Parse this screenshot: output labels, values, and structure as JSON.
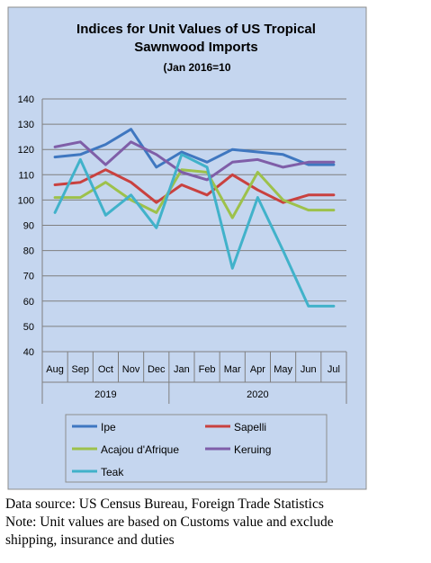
{
  "chart_data": {
    "type": "line",
    "title_lines": [
      "Indices for Unit Values of US Tropical",
      "Sawnwood Imports"
    ],
    "subtitle": "(Jan 2016=10",
    "categories": [
      "Aug",
      "Sep",
      "Oct",
      "Nov",
      "Dec",
      "Jan",
      "Feb",
      "Mar",
      "Apr",
      "May",
      "Jun",
      "Jul"
    ],
    "year_groups": [
      {
        "label": "2019",
        "from": 0,
        "to": 4
      },
      {
        "label": "2020",
        "from": 5,
        "to": 11
      }
    ],
    "ylim": [
      40,
      140
    ],
    "yticks": [
      40,
      50,
      60,
      70,
      80,
      90,
      100,
      110,
      120,
      130,
      140
    ],
    "grid": true,
    "legend_position": "bottom",
    "series": [
      {
        "name": "Ipe",
        "color": "#3f77c0",
        "values": [
          117,
          118,
          122,
          128,
          113,
          119,
          115,
          120,
          119,
          118,
          114,
          114
        ]
      },
      {
        "name": "Sapelli",
        "color": "#c9413f",
        "values": [
          106,
          107,
          112,
          107,
          99,
          106,
          102,
          110,
          104,
          99,
          102,
          102
        ]
      },
      {
        "name": "Acajou d'Afrique",
        "color": "#9dc14b",
        "values": [
          101,
          101,
          107,
          100,
          95,
          112,
          111,
          93,
          111,
          100,
          96,
          96
        ]
      },
      {
        "name": "Keruing",
        "color": "#7f5ea8",
        "values": [
          121,
          123,
          114,
          123,
          118,
          111,
          108,
          115,
          116,
          113,
          115,
          115
        ]
      },
      {
        "name": "Teak",
        "color": "#41b2ca",
        "values": [
          95,
          116,
          94,
          102,
          89,
          118,
          113,
          73,
          101,
          80,
          58,
          58
        ]
      }
    ]
  },
  "notes": {
    "line1": "Data source: US Census Bureau, Foreign Trade Statistics",
    "line2": "Note: Unit values are based on Customs value and exclude",
    "line3": "shipping, insurance and duties"
  }
}
